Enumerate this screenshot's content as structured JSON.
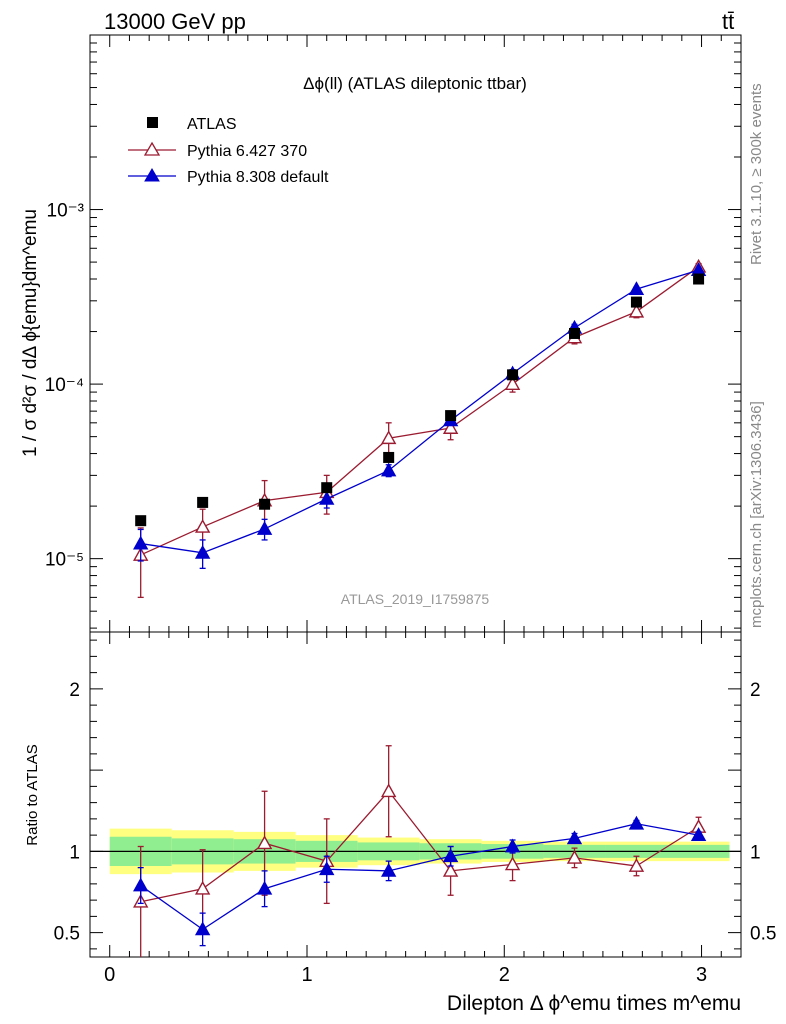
{
  "header": {
    "energy_label": "13000 GeV pp",
    "process_label": "tt̄"
  },
  "side_labels": {
    "rivet": "Rivet 3.1.10, ≥ 300k events",
    "source": "mcplots.cern.ch [arXiv:1306.3436]"
  },
  "chart_data": {
    "type": "line",
    "title": "Δϕ(ll) (ATLAS dileptonic ttbar)",
    "analysis_id": "ATLAS_2019_I1759875",
    "ylabel": "1 / σ  d²σ / dΔ ϕ{emu}dm^emu",
    "ratio_ylabel": "Ratio to ATLAS",
    "xlabel": "Dilepton Δ ϕ^emu times m^emu",
    "xlim": [
      -0.1,
      3.2
    ],
    "ylim": [
      3.8e-06,
      0.01
    ],
    "yscale": "log",
    "ratio_ylim": [
      0.35,
      2.35
    ],
    "x_ticks": [
      "0",
      "1",
      "2",
      "3"
    ],
    "y_ticks": [
      "10⁻⁵",
      "10⁻⁴",
      "10⁻³"
    ],
    "ratio_ticks": [
      "0.5",
      "1",
      "2"
    ],
    "x": [
      0.157,
      0.471,
      0.785,
      1.1,
      1.414,
      1.728,
      2.042,
      2.356,
      2.67,
      2.985
    ],
    "series": [
      {
        "name": "ATLAS",
        "marker": "square",
        "color": "#000000",
        "values": [
          1.65e-05,
          2.1e-05,
          2.05e-05,
          2.55e-05,
          3.8e-05,
          6.6e-05,
          0.000113,
          0.000195,
          0.000295,
          0.0004
        ]
      },
      {
        "name": "Pythia 6.427 370",
        "marker": "open-triangle",
        "color": "#9b1b30",
        "values": [
          1.05e-05,
          1.52e-05,
          2.15e-05,
          2.4e-05,
          4.9e-05,
          5.6e-05,
          0.0001,
          0.000185,
          0.00026,
          0.00047
        ],
        "yerr": [
          4.5e-06,
          4e-06,
          6.5e-06,
          6e-06,
          1.1e-05,
          8e-06,
          1e-05,
          1.5e-05,
          2e-05,
          2e-05
        ],
        "ratio": [
          0.69,
          0.77,
          1.05,
          0.94,
          1.37,
          0.88,
          0.92,
          0.96,
          0.91,
          1.15
        ],
        "ratio_err": [
          0.34,
          0.24,
          0.32,
          0.26,
          0.28,
          0.15,
          0.1,
          0.06,
          0.06,
          0.06
        ]
      },
      {
        "name": "Pythia 8.308 default",
        "marker": "filled-triangle",
        "color": "#0000cc",
        "values": [
          1.22e-05,
          1.08e-05,
          1.48e-05,
          2.2e-05,
          3.2e-05,
          6.2e-05,
          0.000115,
          0.00021,
          0.00035,
          0.00045
        ],
        "yerr": [
          2.5e-06,
          2e-06,
          2e-06,
          2.5e-06,
          2.5e-06,
          4e-06,
          6e-06,
          1e-05,
          1e-05,
          1e-05
        ],
        "ratio": [
          0.79,
          0.52,
          0.77,
          0.89,
          0.88,
          0.97,
          1.03,
          1.08,
          1.17,
          1.1
        ],
        "ratio_err": [
          0.11,
          0.1,
          0.11,
          0.08,
          0.06,
          0.06,
          0.04,
          0.03,
          0.02,
          0.02
        ]
      }
    ],
    "uncertainty_bands": {
      "inner_color": "#90ee90",
      "outer_color": "#ffff80",
      "inner_halfwidth": [
        0.09,
        0.08,
        0.075,
        0.065,
        0.055,
        0.05,
        0.045,
        0.04,
        0.04,
        0.04
      ],
      "outer_halfwidth": [
        0.14,
        0.13,
        0.12,
        0.1,
        0.085,
        0.075,
        0.065,
        0.06,
        0.06,
        0.06
      ]
    }
  }
}
